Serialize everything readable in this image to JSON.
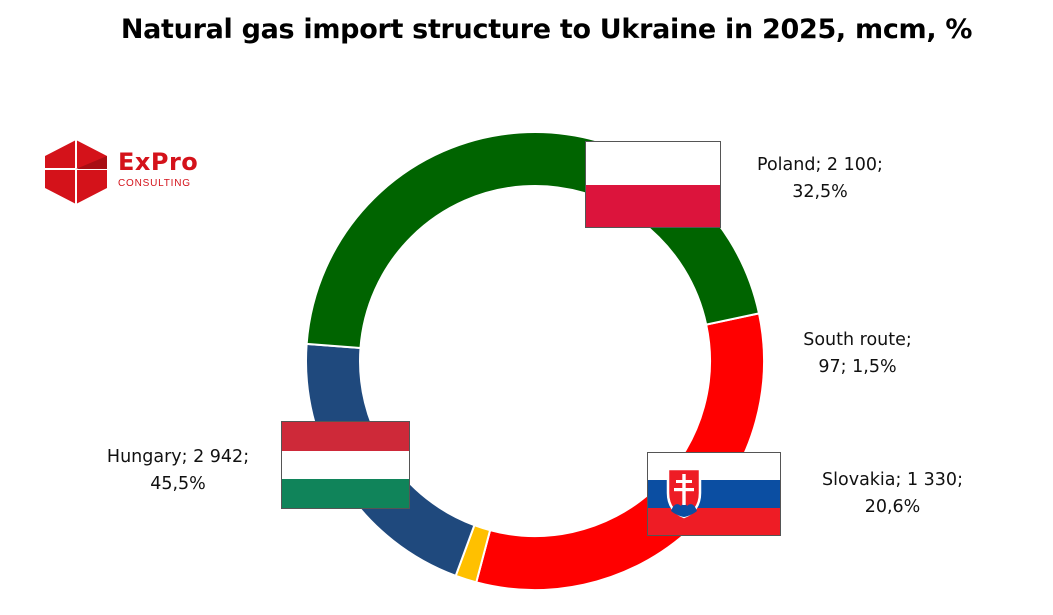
{
  "title": "Natural gas import structure to Ukraine in 2025, mcm, %",
  "logo": {
    "name": "ExPro",
    "tagline": "CONSULTING",
    "color": "#d4121a"
  },
  "chart_data": {
    "type": "pie",
    "variant": "donut",
    "start_angle_deg": 78,
    "direction": "clockwise",
    "slices": [
      {
        "label": "Poland",
        "value": 2100,
        "percent": "32,5%",
        "value_text": "2 100",
        "color": "#ff0000",
        "flag": "poland-flag"
      },
      {
        "label": "South route",
        "value": 97,
        "percent": "1,5%",
        "value_text": "97",
        "color": "#ffc000",
        "flag": ""
      },
      {
        "label": "Slovakia",
        "value": 1330,
        "percent": "20,6%",
        "value_text": "1 330",
        "color": "#1f497d",
        "flag": "slovakia-flag"
      },
      {
        "label": "Hungary",
        "value": 2942,
        "percent": "45,5%",
        "value_text": "2 942",
        "color": "#006400",
        "flag": "hungary-flag"
      }
    ],
    "data_labels": [
      {
        "line1": "Poland; 2 100;",
        "line2": "32,5%"
      },
      {
        "line1": "South route;",
        "line2": "97; 1,5%"
      },
      {
        "line1": "Slovakia; 1 330;",
        "line2": "20,6%"
      },
      {
        "line1": "Hungary; 2 942;",
        "line2": "45,5%"
      }
    ],
    "legend": "none"
  },
  "flags": {
    "poland": [
      "#ffffff",
      "#dc143c"
    ],
    "hungary": [
      "#ce2939",
      "#ffffff",
      "#10845a"
    ],
    "slovakia": [
      "#ffffff",
      "#0b4ea2",
      "#ee1c25"
    ]
  }
}
